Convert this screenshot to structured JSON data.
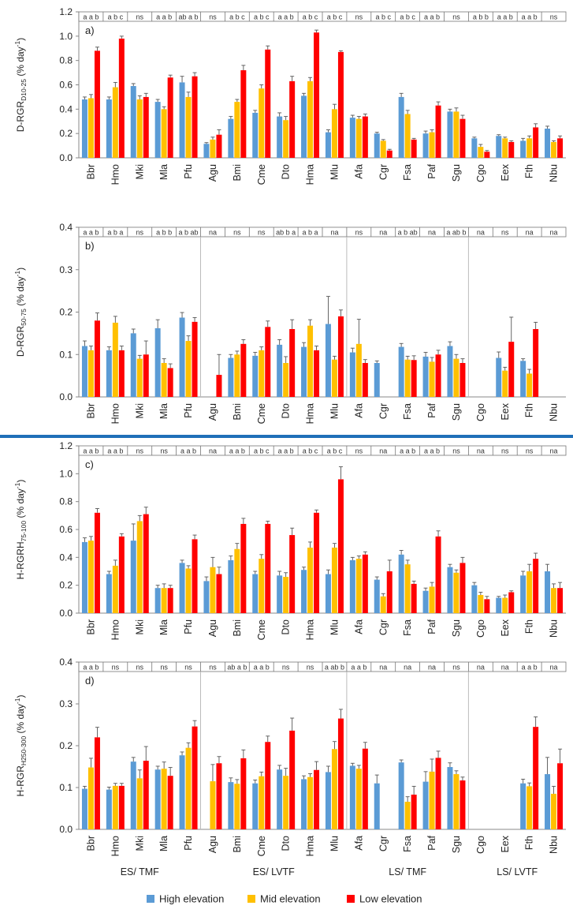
{
  "categories": [
    "Bbr",
    "Hmo",
    "Mki",
    "Mla",
    "Pfu",
    "Agu",
    "Bmi",
    "Cme",
    "Dto",
    "Hma",
    "Mlu",
    "Afa",
    "Cgr",
    "Fsa",
    "Paf",
    "Sgu",
    "Cgo",
    "Eex",
    "Fth",
    "Nbu"
  ],
  "legend": [
    {
      "name": "High elevation",
      "color": "#5B9BD5"
    },
    {
      "name": "Mid elevation",
      "color": "#FFC000"
    },
    {
      "name": "Low elevation",
      "color": "#FF0000"
    }
  ],
  "groups": [
    "ES/ TMF",
    "ES/ LVTF",
    "LS/ TMF",
    "LS/ LVTF"
  ],
  "separator_color": "#1F6FB8",
  "chart_data": [
    {
      "type": "bar",
      "panel_label": "a)",
      "ylabel_main": "D-RGR",
      "ylabel_sub": "D10-25",
      "ylabel_unit": " (% day",
      "ylabel_sup": "-1",
      "ylabel_close": ")",
      "ylim": [
        0,
        1.2
      ],
      "yticks": [
        "0.0",
        "0.2",
        "0.4",
        "0.6",
        "0.8",
        "1.0",
        "1.2"
      ],
      "sig": [
        "a a b",
        "a b c",
        "ns",
        "a a b",
        "ab a b",
        "ns",
        "a b c",
        "a b c",
        "a a b",
        "a b c",
        "a b c",
        "ns",
        "a b c",
        "a b c",
        "a a b",
        "ns",
        "a b b",
        "a a b",
        "a a b",
        "ns"
      ],
      "separators": [],
      "series": [
        {
          "name": "High elevation",
          "values": [
            0.48,
            0.48,
            0.59,
            0.46,
            0.62,
            0.115,
            0.32,
            0.37,
            0.34,
            0.51,
            0.21,
            0.33,
            0.2,
            0.5,
            0.2,
            0.38,
            0.16,
            0.18,
            0.14,
            0.24
          ],
          "errors": [
            0.02,
            0.02,
            0.02,
            0.02,
            0.05,
            0.01,
            0.02,
            0.02,
            0.03,
            0.02,
            0.02,
            0.02,
            0.01,
            0.03,
            0.02,
            0.02,
            0.01,
            0.01,
            0.02,
            0.02
          ]
        },
        {
          "name": "Mid elevation",
          "values": [
            0.49,
            0.58,
            0.48,
            0.4,
            0.5,
            0.15,
            0.46,
            0.57,
            0.31,
            0.63,
            0.4,
            0.32,
            0.14,
            0.36,
            0.21,
            0.38,
            0.09,
            0.16,
            0.16,
            0.13
          ],
          "errors": [
            0.03,
            0.04,
            0.03,
            0.02,
            0.04,
            0.02,
            0.02,
            0.03,
            0.03,
            0.03,
            0.04,
            0.02,
            0.01,
            0.03,
            0.02,
            0.03,
            0.02,
            0.01,
            0.02,
            0.01
          ]
        },
        {
          "name": "Low elevation",
          "values": [
            0.88,
            0.98,
            0.5,
            0.66,
            0.67,
            0.19,
            0.72,
            0.89,
            0.63,
            1.03,
            0.87,
            0.34,
            0.06,
            0.15,
            0.43,
            0.32,
            0.05,
            0.13,
            0.25,
            0.16
          ],
          "errors": [
            0.03,
            0.02,
            0.03,
            0.02,
            0.03,
            0.04,
            0.04,
            0.03,
            0.04,
            0.02,
            0.01,
            0.02,
            0.01,
            0.01,
            0.03,
            0.03,
            0.01,
            0.01,
            0.03,
            0.02
          ]
        }
      ]
    },
    {
      "type": "bar",
      "panel_label": "b)",
      "ylabel_main": "D-RGR",
      "ylabel_sub": "50-75",
      "ylabel_unit": " (% day",
      "ylabel_sup": "-1",
      "ylabel_close": ")",
      "ylim": [
        0,
        0.4
      ],
      "yticks": [
        "0.0",
        "0.1",
        "0.2",
        "0.3",
        "0.4"
      ],
      "sig": [
        "a a b",
        "a b a",
        "ns",
        "a b b",
        "a b ab",
        "na",
        "ns",
        "ns",
        "ab b a",
        "a b a",
        "na",
        "ns",
        "na",
        "a b ab",
        "na",
        "a ab b",
        "na",
        "ns",
        "na",
        "na"
      ],
      "separators": [
        4,
        10,
        15
      ],
      "series": [
        {
          "name": "High elevation",
          "values": [
            0.12,
            0.11,
            0.15,
            0.162,
            0.187,
            null,
            0.092,
            0.097,
            0.123,
            0.118,
            0.172,
            0.105,
            0.08,
            0.118,
            0.095,
            0.12,
            null,
            0.092,
            0.085,
            null
          ],
          "errors": [
            0.012,
            0.008,
            0.01,
            0.02,
            0.012,
            null,
            0.008,
            0.008,
            0.012,
            0.01,
            0.065,
            0.01,
            0.005,
            0.008,
            0.01,
            0.01,
            null,
            0.014,
            0.005,
            null
          ]
        },
        {
          "name": "Mid elevation",
          "values": [
            0.11,
            0.175,
            0.09,
            0.08,
            0.132,
            null,
            0.1,
            0.11,
            0.08,
            0.168,
            0.088,
            0.125,
            null,
            0.088,
            0.083,
            0.09,
            null,
            0.062,
            0.055,
            null
          ],
          "errors": [
            0.01,
            0.015,
            0.008,
            0.01,
            0.012,
            null,
            0.008,
            0.008,
            0.015,
            0.014,
            0.008,
            0.058,
            null,
            0.008,
            0.01,
            0.01,
            null,
            0.008,
            0.01,
            null
          ]
        },
        {
          "name": "Low elevation",
          "values": [
            0.18,
            0.11,
            0.1,
            0.068,
            0.177,
            0.052,
            0.125,
            0.165,
            0.16,
            0.11,
            0.19,
            0.08,
            null,
            0.087,
            0.1,
            0.08,
            null,
            0.13,
            0.16,
            null
          ],
          "errors": [
            0.018,
            0.01,
            0.032,
            0.01,
            0.01,
            0.048,
            0.01,
            0.014,
            0.022,
            0.01,
            0.015,
            0.008,
            null,
            0.01,
            0.01,
            0.01,
            null,
            0.058,
            0.016,
            null
          ]
        }
      ]
    },
    {
      "type": "bar",
      "panel_label": "c)",
      "ylabel_main": "H-RGRH",
      "ylabel_sub": "75-100",
      "ylabel_unit": " (% day",
      "ylabel_sup": "-1",
      "ylabel_close": ")",
      "ylim": [
        0,
        1.2
      ],
      "yticks": [
        "0.0",
        "0.2",
        "0.4",
        "0.6",
        "0.8",
        "1.0",
        "1.2"
      ],
      "sig": [
        "a a b",
        "a a b",
        "ns",
        "ns",
        "a a b",
        "na",
        "a a b",
        "a b c",
        "a a b",
        "a b c",
        "a b c",
        "ns",
        "na",
        "a a b",
        "a a b",
        "ns",
        "na",
        "ns",
        "ns",
        "na"
      ],
      "separators": [],
      "series": [
        {
          "name": "High elevation",
          "values": [
            0.51,
            0.28,
            0.52,
            0.18,
            0.36,
            0.23,
            0.38,
            0.28,
            0.27,
            0.31,
            0.28,
            0.38,
            0.24,
            0.42,
            0.16,
            0.33,
            0.2,
            0.11,
            0.27,
            0.3
          ],
          "errors": [
            0.03,
            0.02,
            0.12,
            0.02,
            0.02,
            0.03,
            0.03,
            0.02,
            0.03,
            0.02,
            0.03,
            0.02,
            0.02,
            0.03,
            0.02,
            0.02,
            0.02,
            0.01,
            0.03,
            0.05
          ]
        },
        {
          "name": "Mid elevation",
          "values": [
            0.52,
            0.34,
            0.66,
            0.18,
            0.32,
            0.33,
            0.46,
            0.39,
            0.26,
            0.47,
            0.47,
            0.39,
            0.12,
            0.35,
            0.19,
            0.29,
            0.13,
            0.11,
            0.3,
            0.18
          ],
          "errors": [
            0.03,
            0.04,
            0.04,
            0.03,
            0.02,
            0.07,
            0.04,
            0.03,
            0.03,
            0.04,
            0.03,
            0.02,
            0.02,
            0.03,
            0.03,
            0.02,
            0.02,
            0.02,
            0.05,
            0.03
          ]
        },
        {
          "name": "Low elevation",
          "values": [
            0.72,
            0.55,
            0.71,
            0.18,
            0.53,
            0.28,
            0.64,
            0.64,
            0.56,
            0.72,
            0.96,
            0.42,
            0.3,
            0.21,
            0.55,
            0.36,
            0.1,
            0.15,
            0.39,
            0.18
          ],
          "errors": [
            0.03,
            0.02,
            0.05,
            0.02,
            0.03,
            0.05,
            0.04,
            0.02,
            0.05,
            0.02,
            0.09,
            0.02,
            0.08,
            0.02,
            0.04,
            0.04,
            0.02,
            0.01,
            0.04,
            0.04
          ]
        }
      ]
    },
    {
      "type": "bar",
      "panel_label": "d)",
      "ylabel_main": "H-RGR",
      "ylabel_sub": "H250-300",
      "ylabel_unit": " (% day",
      "ylabel_sup": "-1",
      "ylabel_close": ")",
      "ylim": [
        0,
        0.4
      ],
      "yticks": [
        "0.0",
        "0.1",
        "0.2",
        "0.3",
        "0.4"
      ],
      "sig": [
        "a a b",
        "ns",
        "ns",
        "ns",
        "ns",
        "ns",
        "ab a b",
        "a a b",
        "ns",
        "ns",
        "a ab b",
        "a a b",
        "na",
        "na",
        "na",
        "ns",
        "na",
        "na",
        "a a b",
        "na"
      ],
      "separators": [
        4,
        10,
        15
      ],
      "series": [
        {
          "name": "High elevation",
          "values": [
            0.097,
            0.095,
            0.162,
            0.143,
            0.177,
            null,
            0.113,
            0.11,
            0.143,
            0.12,
            0.137,
            0.152,
            0.11,
            0.16,
            0.114,
            0.149,
            null,
            null,
            0.11,
            0.132
          ],
          "errors": [
            0.006,
            0.006,
            0.01,
            0.008,
            0.008,
            null,
            0.01,
            0.008,
            0.01,
            0.008,
            0.014,
            0.006,
            0.02,
            0.006,
            0.024,
            0.01,
            null,
            null,
            0.01,
            0.04
          ]
        },
        {
          "name": "Mid elevation",
          "values": [
            0.148,
            0.104,
            0.122,
            0.145,
            0.195,
            0.115,
            0.109,
            0.127,
            0.128,
            0.125,
            0.192,
            0.145,
            null,
            0.066,
            0.138,
            0.132,
            null,
            null,
            0.103,
            0.085
          ],
          " errors_placeholder": null,
          "errors": [
            0.022,
            0.006,
            0.02,
            0.016,
            0.012,
            0.04,
            0.01,
            0.01,
            0.018,
            0.008,
            0.018,
            0.008,
            null,
            0.012,
            0.03,
            0.008,
            null,
            null,
            0.008,
            0.018
          ]
        },
        {
          "name": "Low elevation",
          "values": [
            0.22,
            0.104,
            0.164,
            0.128,
            0.246,
            0.158,
            0.17,
            0.209,
            0.236,
            0.142,
            0.265,
            0.193,
            null,
            0.083,
            0.171,
            0.117,
            null,
            null,
            0.245,
            0.158
          ],
          "errors": [
            0.024,
            0.006,
            0.034,
            0.02,
            0.014,
            0.016,
            0.02,
            0.014,
            0.03,
            0.02,
            0.022,
            0.015,
            null,
            0.02,
            0.016,
            0.008,
            null,
            null,
            0.024,
            0.034
          ]
        }
      ]
    }
  ]
}
